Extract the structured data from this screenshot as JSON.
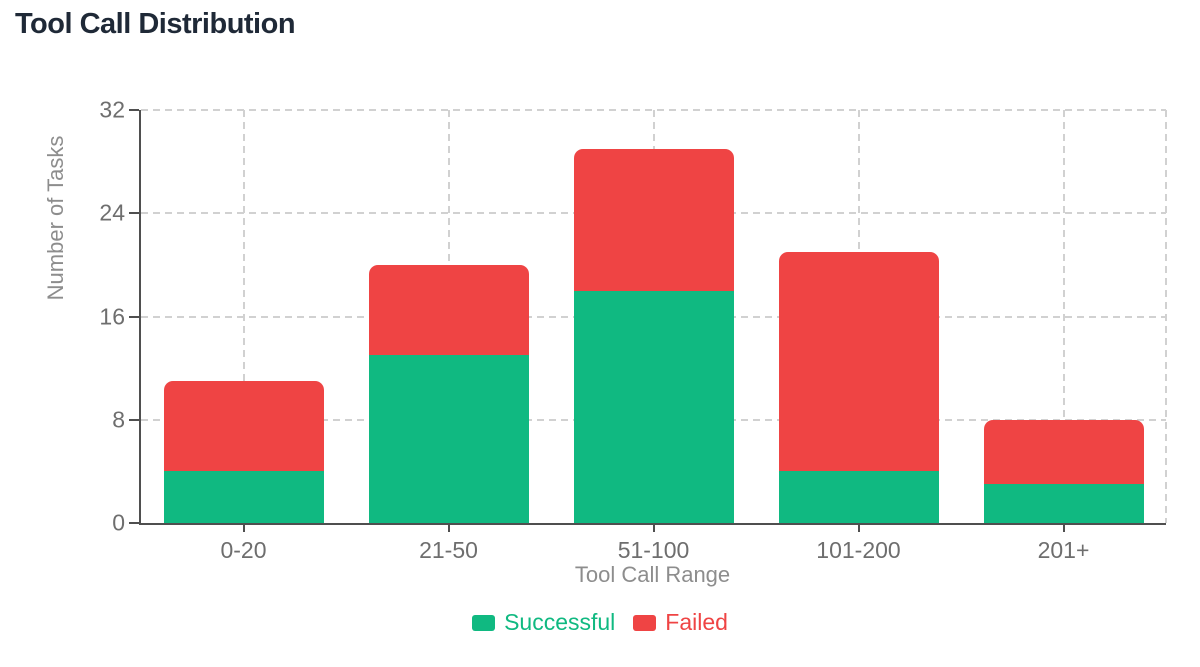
{
  "chart_data": {
    "type": "bar",
    "stacked": true,
    "title": "Tool Call Distribution",
    "xlabel": "Tool Call Range",
    "ylabel": "Number of Tasks",
    "categories": [
      "0-20",
      "21-50",
      "51-100",
      "101-200",
      "201+"
    ],
    "series": [
      {
        "name": "Successful",
        "color": "#10b981",
        "values": [
          4,
          13,
          18,
          4,
          3
        ]
      },
      {
        "name": "Failed",
        "color": "#ef4444",
        "values": [
          7,
          7,
          11,
          17,
          5
        ]
      }
    ],
    "ylim": [
      0,
      32
    ],
    "yticks": [
      0,
      8,
      16,
      24,
      32
    ],
    "grid": "dashed",
    "legend_position": "bottom",
    "axis_color": "#4f4f4f",
    "grid_color": "#d1d1d1",
    "tick_label_color": "#6e6e6e",
    "axis_title_color": "#8d8d8d",
    "title_color": "#1f2937"
  }
}
